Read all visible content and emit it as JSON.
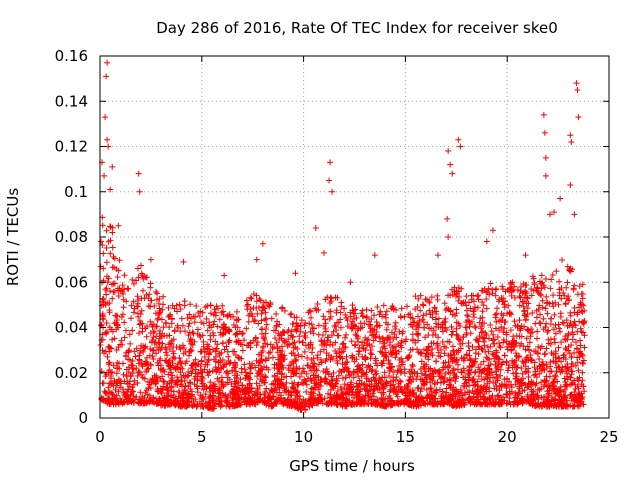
{
  "chart_data": {
    "type": "scatter",
    "title": "Day 286 of 2016, Rate Of TEC Index for receiver ske0",
    "xlabel": "GPS time / hours",
    "ylabel": "ROTI / TECUs",
    "xlim": [
      0,
      25
    ],
    "ylim": [
      0,
      0.16
    ],
    "x_ticks": [
      0,
      5,
      10,
      15,
      20,
      25
    ],
    "x_tick_labels": [
      "0",
      "5",
      "10",
      "15",
      "20",
      "25"
    ],
    "y_ticks": [
      0,
      0.02,
      0.04,
      0.06,
      0.08,
      0.1,
      0.12,
      0.14,
      0.16
    ],
    "y_tick_labels": [
      "0",
      "0.02",
      "0.04",
      "0.06",
      "0.08",
      "0.1",
      "0.12",
      "0.14",
      "0.16"
    ],
    "grid": true,
    "marker": "+",
    "color": "#ff0000",
    "envelope": {
      "x": [
        0,
        0.5,
        1,
        1.5,
        2,
        2.5,
        3,
        3.5,
        4,
        4.5,
        5,
        5.5,
        6,
        6.5,
        7,
        7.5,
        8,
        8.5,
        9,
        9.5,
        10,
        10.5,
        11,
        11.5,
        12,
        12.5,
        13,
        13.5,
        14,
        14.5,
        15,
        15.5,
        16,
        16.5,
        17,
        17.5,
        18,
        18.5,
        19,
        19.5,
        20,
        20.5,
        21,
        21.5,
        22,
        22.5,
        23,
        23.5,
        23.8
      ],
      "typical_max": [
        0.09,
        0.09,
        0.07,
        0.06,
        0.07,
        0.06,
        0.055,
        0.05,
        0.055,
        0.05,
        0.05,
        0.05,
        0.05,
        0.045,
        0.05,
        0.055,
        0.055,
        0.05,
        0.05,
        0.045,
        0.045,
        0.05,
        0.055,
        0.055,
        0.05,
        0.05,
        0.05,
        0.05,
        0.05,
        0.05,
        0.05,
        0.055,
        0.055,
        0.055,
        0.055,
        0.06,
        0.055,
        0.055,
        0.06,
        0.06,
        0.06,
        0.06,
        0.06,
        0.065,
        0.065,
        0.07,
        0.07,
        0.06,
        0.06
      ],
      "typical_min": [
        0.008,
        0.006,
        0.006,
        0.007,
        0.006,
        0.007,
        0.005,
        0.006,
        0.005,
        0.005,
        0.005,
        0.004,
        0.005,
        0.005,
        0.006,
        0.006,
        0.006,
        0.005,
        0.006,
        0.005,
        0.003,
        0.006,
        0.006,
        0.006,
        0.005,
        0.006,
        0.006,
        0.006,
        0.005,
        0.006,
        0.006,
        0.005,
        0.006,
        0.006,
        0.006,
        0.005,
        0.006,
        0.006,
        0.006,
        0.006,
        0.006,
        0.006,
        0.006,
        0.005,
        0.005,
        0.005,
        0.005,
        0.005,
        0.006
      ]
    },
    "spikes": [
      {
        "x": 0.35,
        "y": 0.157
      },
      {
        "x": 0.3,
        "y": 0.151
      },
      {
        "x": 0.25,
        "y": 0.133
      },
      {
        "x": 0.35,
        "y": 0.123
      },
      {
        "x": 0.4,
        "y": 0.12
      },
      {
        "x": 0.1,
        "y": 0.113
      },
      {
        "x": 0.2,
        "y": 0.107
      },
      {
        "x": 0.6,
        "y": 0.111
      },
      {
        "x": 0.5,
        "y": 0.101
      },
      {
        "x": 1.9,
        "y": 0.108
      },
      {
        "x": 1.95,
        "y": 0.1
      },
      {
        "x": 11.3,
        "y": 0.113
      },
      {
        "x": 11.25,
        "y": 0.105
      },
      {
        "x": 11.4,
        "y": 0.1
      },
      {
        "x": 17.1,
        "y": 0.118
      },
      {
        "x": 17.2,
        "y": 0.112
      },
      {
        "x": 17.6,
        "y": 0.123
      },
      {
        "x": 17.7,
        "y": 0.12
      },
      {
        "x": 17.3,
        "y": 0.108
      },
      {
        "x": 21.8,
        "y": 0.134
      },
      {
        "x": 21.85,
        "y": 0.126
      },
      {
        "x": 21.9,
        "y": 0.115
      },
      {
        "x": 21.9,
        "y": 0.107
      },
      {
        "x": 23.4,
        "y": 0.148
      },
      {
        "x": 23.45,
        "y": 0.145
      },
      {
        "x": 23.5,
        "y": 0.133
      },
      {
        "x": 23.1,
        "y": 0.125
      },
      {
        "x": 23.15,
        "y": 0.122
      },
      {
        "x": 23.1,
        "y": 0.103
      },
      {
        "x": 22.6,
        "y": 0.097
      },
      {
        "x": 22.3,
        "y": 0.091
      },
      {
        "x": 23.3,
        "y": 0.09
      },
      {
        "x": 19.3,
        "y": 0.083
      },
      {
        "x": 17.05,
        "y": 0.088
      },
      {
        "x": 17.1,
        "y": 0.08
      },
      {
        "x": 10.6,
        "y": 0.084
      },
      {
        "x": 11.0,
        "y": 0.073
      },
      {
        "x": 13.5,
        "y": 0.072
      },
      {
        "x": 8.0,
        "y": 0.077
      },
      {
        "x": 7.7,
        "y": 0.07
      },
      {
        "x": 4.1,
        "y": 0.069
      },
      {
        "x": 2.5,
        "y": 0.07
      },
      {
        "x": 0.05,
        "y": 0.078
      },
      {
        "x": 0.9,
        "y": 0.085
      },
      {
        "x": 19.0,
        "y": 0.078
      },
      {
        "x": 20.9,
        "y": 0.072
      },
      {
        "x": 22.1,
        "y": 0.09
      },
      {
        "x": 16.6,
        "y": 0.072
      },
      {
        "x": 12.3,
        "y": 0.06
      },
      {
        "x": 6.1,
        "y": 0.063
      },
      {
        "x": 9.6,
        "y": 0.064
      }
    ],
    "dense_points_per_hour": 170
  }
}
